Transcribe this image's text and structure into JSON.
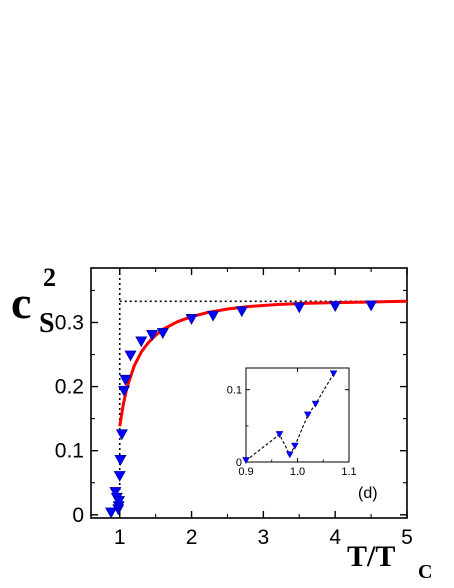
{
  "colors": {
    "fit_line": "#ff0000",
    "markers": "#0000ff",
    "axes": "#000000",
    "guide_lines": "#000000"
  },
  "chart_data": [
    {
      "type": "scatter",
      "title": "",
      "ylabel": {
        "base": "c",
        "sub": "S",
        "sup": "2"
      },
      "xlabel": {
        "base": "T/T",
        "sub": "C"
      },
      "xlim": [
        0.6,
        5.0
      ],
      "ylim": [
        -0.005,
        0.385
      ],
      "xticks": [
        1,
        2,
        3,
        4,
        5
      ],
      "yticks": [
        0,
        0.1,
        0.2,
        0.3
      ],
      "ytick_labels": [
        "0",
        "0.1",
        "0.2",
        "0.3"
      ],
      "grid": false,
      "marker": "triangle-down",
      "series": [
        {
          "kind": "markers",
          "x": [
            0.88,
            0.94,
            0.96,
            0.98,
            0.985,
            0.99,
            1.0,
            1.01,
            1.03,
            1.06,
            1.08,
            1.15,
            1.3,
            1.45,
            1.6,
            2.0,
            2.3,
            2.7,
            3.5,
            4.0,
            4.5
          ],
          "y": [
            0.003,
            0.035,
            0.026,
            0.008,
            0.013,
            0.021,
            0.06,
            0.085,
            0.125,
            0.193,
            0.21,
            0.248,
            0.27,
            0.28,
            0.283,
            0.305,
            0.31,
            0.317,
            0.323,
            0.325,
            0.326
          ]
        },
        {
          "kind": "fit-line",
          "x": [
            1.0,
            1.05,
            1.1,
            1.2,
            1.3,
            1.4,
            1.5,
            1.6,
            1.8,
            2.0,
            2.2,
            2.5,
            2.8,
            3.2,
            3.6,
            4.0,
            4.5,
            5.0
          ],
          "y": [
            0.138,
            0.172,
            0.198,
            0.232,
            0.254,
            0.269,
            0.28,
            0.289,
            0.301,
            0.309,
            0.315,
            0.321,
            0.325,
            0.328,
            0.33,
            0.331,
            0.332,
            0.333
          ]
        }
      ],
      "guides": {
        "vertical_x": 1.0,
        "horizontal_y": 0.333
      },
      "panel_label": "(d)"
    },
    {
      "type": "scatter",
      "title": "",
      "xlim": [
        0.9,
        1.1
      ],
      "ylim": [
        0.0,
        0.13
      ],
      "xticks": [
        0.9,
        1.0,
        1.1
      ],
      "xtick_labels": [
        "0.9",
        "1.0",
        "1.1"
      ],
      "yticks": [
        0,
        0.1
      ],
      "ytick_labels": [
        "0",
        "0.1"
      ],
      "marker": "triangle-down",
      "series": [
        {
          "kind": "markers-dashed",
          "x": [
            0.9,
            0.965,
            0.985,
            0.995,
            1.02,
            1.035,
            1.07
          ],
          "y": [
            0.002,
            0.038,
            0.01,
            0.022,
            0.065,
            0.08,
            0.122
          ]
        }
      ]
    }
  ]
}
